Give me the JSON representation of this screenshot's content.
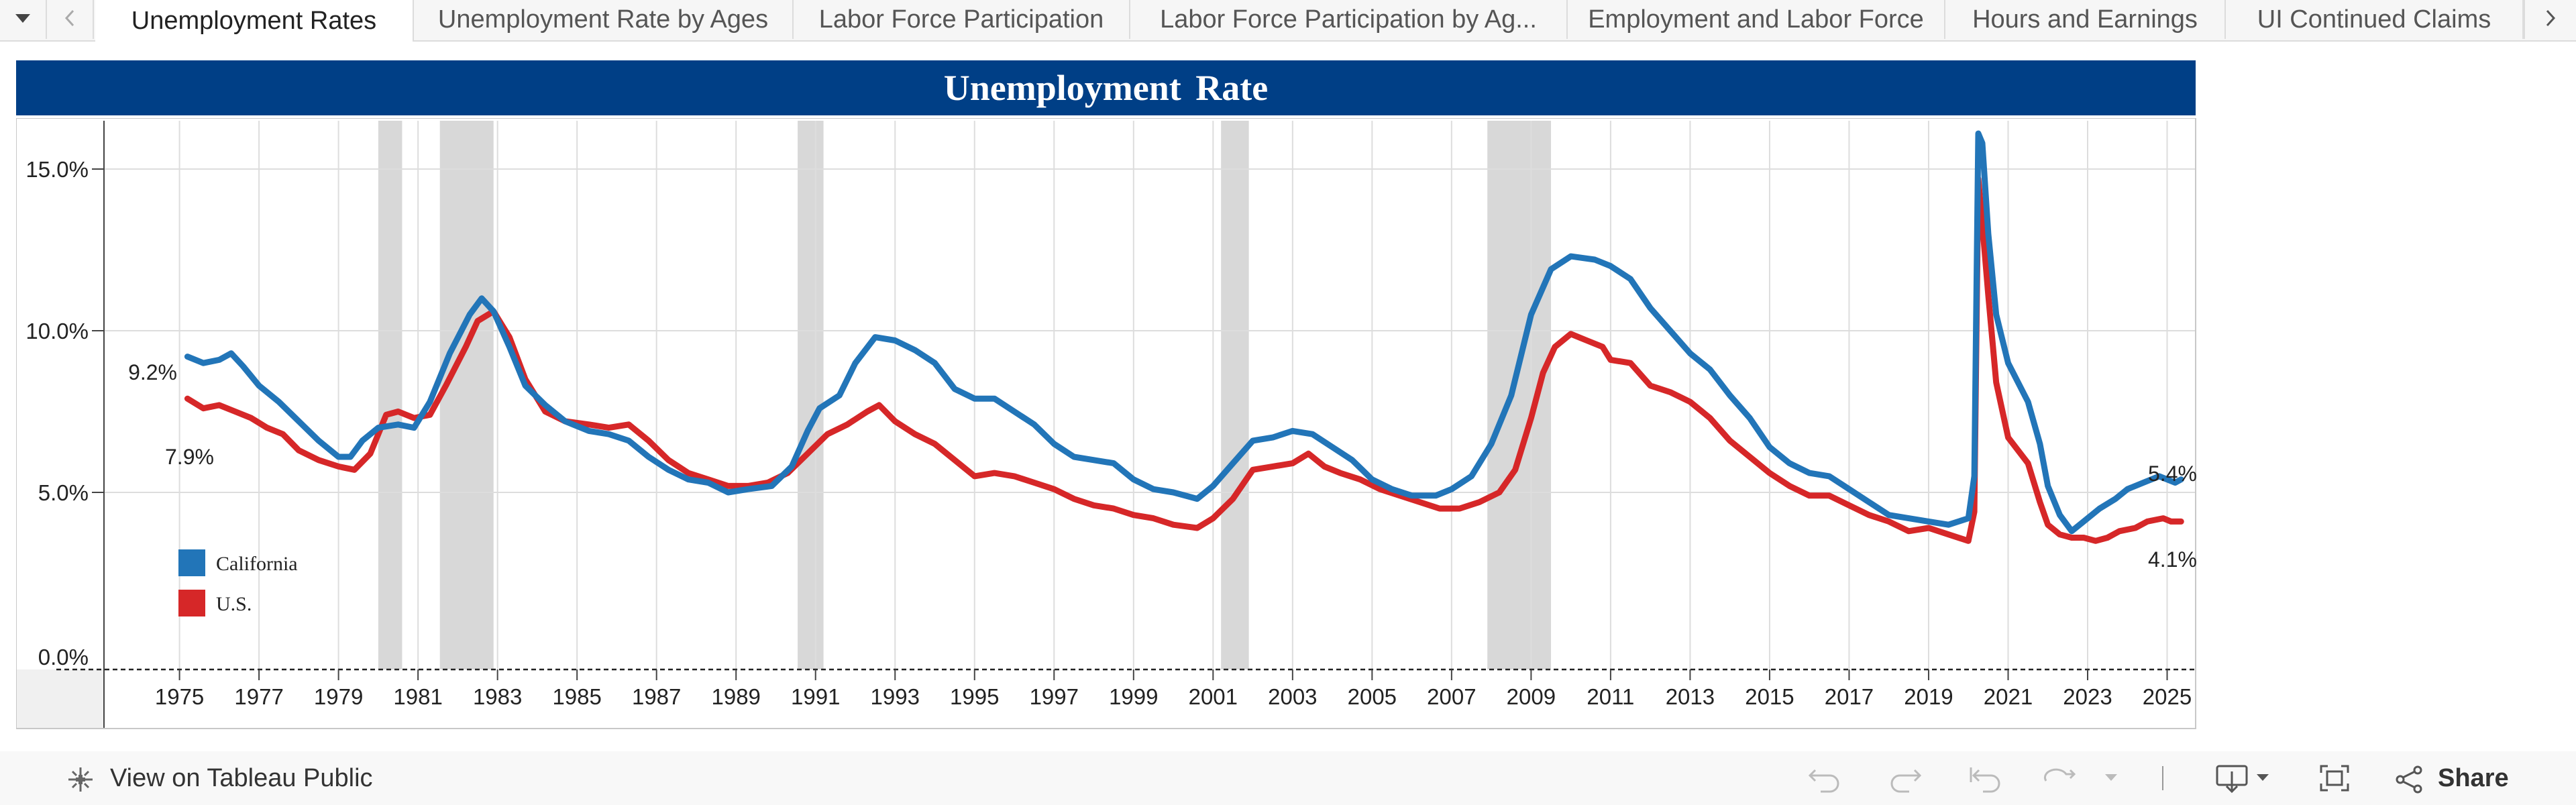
{
  "tabs": [
    {
      "label": "Unemployment Rates",
      "active": true
    },
    {
      "label": "Unemployment Rate by Ages",
      "active": false
    },
    {
      "label": "Labor Force Participation",
      "active": false
    },
    {
      "label": "Labor Force Participation by Ag...",
      "active": false
    },
    {
      "label": "Employment and Labor Force",
      "active": false
    },
    {
      "label": "Hours and Earnings",
      "active": false
    },
    {
      "label": "UI Continued Claims",
      "active": false
    }
  ],
  "icons": {
    "tab_menu": "caret-down-icon",
    "tab_prev": "chevron-left-icon",
    "tab_next": "chevron-right-icon",
    "tableau": "tableau-logo-icon",
    "undo": "undo-icon",
    "redo": "redo-icon",
    "revert": "revert-icon",
    "refresh": "refresh-icon",
    "refresh_menu": "caret-down-icon",
    "download": "download-icon",
    "fullscreen": "fullscreen-icon",
    "share": "share-icon"
  },
  "header": {
    "title": "Unemployment  Rate"
  },
  "footer": {
    "view_label": "View on Tableau Public",
    "share_label": "Share"
  },
  "colors": {
    "header_bg": "#003f86",
    "california": "#2275b8",
    "us": "#d62728",
    "recession": "#d8d8d8"
  },
  "chart_data": {
    "type": "line",
    "title": "Unemployment  Rate",
    "ylim": [
      0,
      16.5
    ],
    "xlim": [
      1973.1,
      2025.7
    ],
    "y_ticks": [
      "0.0%",
      "5.0%",
      "10.0%",
      "15.0%"
    ],
    "x_ticks": [
      "1975",
      "1977",
      "1979",
      "1981",
      "1983",
      "1985",
      "1987",
      "1989",
      "1991",
      "1993",
      "1995",
      "1997",
      "1999",
      "2001",
      "2003",
      "2005",
      "2007",
      "2009",
      "2011",
      "2013",
      "2015",
      "2017",
      "2019",
      "2021",
      "2023",
      "2025"
    ],
    "grid": true,
    "legend_position": "lower-left",
    "recessions": [
      [
        1980.0,
        1980.6
      ],
      [
        1981.55,
        1982.9
      ],
      [
        1990.55,
        1991.2
      ],
      [
        2001.2,
        2001.9
      ],
      [
        2007.9,
        2009.5
      ]
    ],
    "series": [
      {
        "name": "California",
        "color": "#2275b8",
        "start_label": "9.2%",
        "end_label": "5.4%",
        "points": [
          [
            1975.2,
            9.2
          ],
          [
            1975.6,
            9.0
          ],
          [
            1976.0,
            9.1
          ],
          [
            1976.3,
            9.3
          ],
          [
            1976.6,
            8.9
          ],
          [
            1977.0,
            8.3
          ],
          [
            1977.5,
            7.8
          ],
          [
            1978.0,
            7.2
          ],
          [
            1978.5,
            6.6
          ],
          [
            1979.0,
            6.1
          ],
          [
            1979.3,
            6.1
          ],
          [
            1979.6,
            6.6
          ],
          [
            1980.0,
            7.0
          ],
          [
            1980.5,
            7.1
          ],
          [
            1980.9,
            7.0
          ],
          [
            1981.3,
            7.8
          ],
          [
            1981.8,
            9.3
          ],
          [
            1982.3,
            10.5
          ],
          [
            1982.6,
            11.0
          ],
          [
            1982.9,
            10.6
          ],
          [
            1983.3,
            9.5
          ],
          [
            1983.7,
            8.3
          ],
          [
            1984.2,
            7.7
          ],
          [
            1984.7,
            7.2
          ],
          [
            1985.3,
            6.9
          ],
          [
            1985.8,
            6.8
          ],
          [
            1986.3,
            6.6
          ],
          [
            1986.8,
            6.1
          ],
          [
            1987.3,
            5.7
          ],
          [
            1987.8,
            5.4
          ],
          [
            1988.3,
            5.3
          ],
          [
            1988.8,
            5.0
          ],
          [
            1989.3,
            5.1
          ],
          [
            1989.9,
            5.2
          ],
          [
            1990.4,
            5.8
          ],
          [
            1990.8,
            6.9
          ],
          [
            1991.1,
            7.6
          ],
          [
            1991.6,
            8.0
          ],
          [
            1992.0,
            9.0
          ],
          [
            1992.5,
            9.8
          ],
          [
            1993.0,
            9.7
          ],
          [
            1993.5,
            9.4
          ],
          [
            1994.0,
            9.0
          ],
          [
            1994.5,
            8.2
          ],
          [
            1995.0,
            7.9
          ],
          [
            1995.5,
            7.9
          ],
          [
            1996.0,
            7.5
          ],
          [
            1996.5,
            7.1
          ],
          [
            1997.0,
            6.5
          ],
          [
            1997.5,
            6.1
          ],
          [
            1998.0,
            6.0
          ],
          [
            1998.5,
            5.9
          ],
          [
            1999.0,
            5.4
          ],
          [
            1999.5,
            5.1
          ],
          [
            2000.0,
            5.0
          ],
          [
            2000.6,
            4.8
          ],
          [
            2001.0,
            5.2
          ],
          [
            2001.5,
            5.9
          ],
          [
            2002.0,
            6.6
          ],
          [
            2002.5,
            6.7
          ],
          [
            2003.0,
            6.9
          ],
          [
            2003.5,
            6.8
          ],
          [
            2004.0,
            6.4
          ],
          [
            2004.5,
            6.0
          ],
          [
            2005.0,
            5.4
          ],
          [
            2005.5,
            5.1
          ],
          [
            2006.0,
            4.9
          ],
          [
            2006.6,
            4.9
          ],
          [
            2007.0,
            5.1
          ],
          [
            2007.5,
            5.5
          ],
          [
            2008.0,
            6.5
          ],
          [
            2008.5,
            8.0
          ],
          [
            2009.0,
            10.5
          ],
          [
            2009.5,
            11.9
          ],
          [
            2010.0,
            12.3
          ],
          [
            2010.6,
            12.2
          ],
          [
            2011.0,
            12.0
          ],
          [
            2011.5,
            11.6
          ],
          [
            2012.0,
            10.7
          ],
          [
            2012.5,
            10.0
          ],
          [
            2013.0,
            9.3
          ],
          [
            2013.5,
            8.8
          ],
          [
            2014.0,
            8.0
          ],
          [
            2014.5,
            7.3
          ],
          [
            2015.0,
            6.4
          ],
          [
            2015.5,
            5.9
          ],
          [
            2016.0,
            5.6
          ],
          [
            2016.5,
            5.5
          ],
          [
            2017.0,
            5.1
          ],
          [
            2017.5,
            4.7
          ],
          [
            2018.0,
            4.3
          ],
          [
            2018.5,
            4.2
          ],
          [
            2019.0,
            4.1
          ],
          [
            2019.5,
            4.0
          ],
          [
            2020.0,
            4.2
          ],
          [
            2020.15,
            5.5
          ],
          [
            2020.25,
            16.1
          ],
          [
            2020.35,
            15.8
          ],
          [
            2020.5,
            13.0
          ],
          [
            2020.7,
            10.5
          ],
          [
            2021.0,
            9.0
          ],
          [
            2021.5,
            7.8
          ],
          [
            2021.8,
            6.5
          ],
          [
            2022.0,
            5.2
          ],
          [
            2022.3,
            4.3
          ],
          [
            2022.6,
            3.8
          ],
          [
            2022.9,
            4.1
          ],
          [
            2023.3,
            4.5
          ],
          [
            2023.7,
            4.8
          ],
          [
            2024.0,
            5.1
          ],
          [
            2024.4,
            5.3
          ],
          [
            2024.8,
            5.5
          ],
          [
            2025.0,
            5.4
          ],
          [
            2025.2,
            5.3
          ],
          [
            2025.35,
            5.4
          ]
        ]
      },
      {
        "name": "U.S.",
        "color": "#d62728",
        "start_label": "7.9%",
        "end_label": "4.1%",
        "points": [
          [
            1975.2,
            7.9
          ],
          [
            1975.6,
            7.6
          ],
          [
            1976.0,
            7.7
          ],
          [
            1976.4,
            7.5
          ],
          [
            1976.8,
            7.3
          ],
          [
            1977.2,
            7.0
          ],
          [
            1977.6,
            6.8
          ],
          [
            1978.0,
            6.3
          ],
          [
            1978.5,
            6.0
          ],
          [
            1979.0,
            5.8
          ],
          [
            1979.4,
            5.7
          ],
          [
            1979.8,
            6.2
          ],
          [
            1980.2,
            7.4
          ],
          [
            1980.5,
            7.5
          ],
          [
            1980.9,
            7.3
          ],
          [
            1981.3,
            7.4
          ],
          [
            1981.7,
            8.3
          ],
          [
            1982.2,
            9.5
          ],
          [
            1982.5,
            10.3
          ],
          [
            1982.9,
            10.6
          ],
          [
            1983.3,
            9.8
          ],
          [
            1983.7,
            8.5
          ],
          [
            1984.2,
            7.5
          ],
          [
            1984.7,
            7.2
          ],
          [
            1985.3,
            7.1
          ],
          [
            1985.8,
            7.0
          ],
          [
            1986.3,
            7.1
          ],
          [
            1986.8,
            6.6
          ],
          [
            1987.3,
            6.0
          ],
          [
            1987.8,
            5.6
          ],
          [
            1988.3,
            5.4
          ],
          [
            1988.8,
            5.2
          ],
          [
            1989.3,
            5.2
          ],
          [
            1989.8,
            5.3
          ],
          [
            1990.3,
            5.6
          ],
          [
            1990.8,
            6.2
          ],
          [
            1991.3,
            6.8
          ],
          [
            1991.8,
            7.1
          ],
          [
            1992.3,
            7.5
          ],
          [
            1992.6,
            7.7
          ],
          [
            1993.0,
            7.2
          ],
          [
            1993.5,
            6.8
          ],
          [
            1994.0,
            6.5
          ],
          [
            1994.5,
            6.0
          ],
          [
            1995.0,
            5.5
          ],
          [
            1995.5,
            5.6
          ],
          [
            1996.0,
            5.5
          ],
          [
            1996.5,
            5.3
          ],
          [
            1997.0,
            5.1
          ],
          [
            1997.5,
            4.8
          ],
          [
            1998.0,
            4.6
          ],
          [
            1998.5,
            4.5
          ],
          [
            1999.0,
            4.3
          ],
          [
            1999.5,
            4.2
          ],
          [
            2000.0,
            4.0
          ],
          [
            2000.6,
            3.9
          ],
          [
            2001.0,
            4.2
          ],
          [
            2001.5,
            4.8
          ],
          [
            2002.0,
            5.7
          ],
          [
            2002.5,
            5.8
          ],
          [
            2003.0,
            5.9
          ],
          [
            2003.4,
            6.2
          ],
          [
            2003.8,
            5.8
          ],
          [
            2004.2,
            5.6
          ],
          [
            2004.7,
            5.4
          ],
          [
            2005.2,
            5.1
          ],
          [
            2005.7,
            4.9
          ],
          [
            2006.2,
            4.7
          ],
          [
            2006.7,
            4.5
          ],
          [
            2007.2,
            4.5
          ],
          [
            2007.7,
            4.7
          ],
          [
            2008.2,
            5.0
          ],
          [
            2008.6,
            5.7
          ],
          [
            2009.0,
            7.3
          ],
          [
            2009.3,
            8.7
          ],
          [
            2009.6,
            9.5
          ],
          [
            2010.0,
            9.9
          ],
          [
            2010.4,
            9.7
          ],
          [
            2010.8,
            9.5
          ],
          [
            2011.0,
            9.1
          ],
          [
            2011.5,
            9.0
          ],
          [
            2012.0,
            8.3
          ],
          [
            2012.5,
            8.1
          ],
          [
            2013.0,
            7.8
          ],
          [
            2013.5,
            7.3
          ],
          [
            2014.0,
            6.6
          ],
          [
            2014.5,
            6.1
          ],
          [
            2015.0,
            5.6
          ],
          [
            2015.5,
            5.2
          ],
          [
            2016.0,
            4.9
          ],
          [
            2016.5,
            4.9
          ],
          [
            2017.0,
            4.6
          ],
          [
            2017.5,
            4.3
          ],
          [
            2018.0,
            4.1
          ],
          [
            2018.5,
            3.8
          ],
          [
            2019.0,
            3.9
          ],
          [
            2019.5,
            3.7
          ],
          [
            2020.0,
            3.5
          ],
          [
            2020.15,
            4.4
          ],
          [
            2020.25,
            14.7
          ],
          [
            2020.35,
            13.3
          ],
          [
            2020.5,
            11.1
          ],
          [
            2020.7,
            8.4
          ],
          [
            2021.0,
            6.7
          ],
          [
            2021.5,
            5.9
          ],
          [
            2021.8,
            4.7
          ],
          [
            2022.0,
            4.0
          ],
          [
            2022.3,
            3.7
          ],
          [
            2022.6,
            3.6
          ],
          [
            2022.9,
            3.6
          ],
          [
            2023.2,
            3.5
          ],
          [
            2023.5,
            3.6
          ],
          [
            2023.8,
            3.8
          ],
          [
            2024.2,
            3.9
          ],
          [
            2024.5,
            4.1
          ],
          [
            2024.9,
            4.2
          ],
          [
            2025.1,
            4.1
          ],
          [
            2025.35,
            4.1
          ]
        ]
      }
    ]
  }
}
